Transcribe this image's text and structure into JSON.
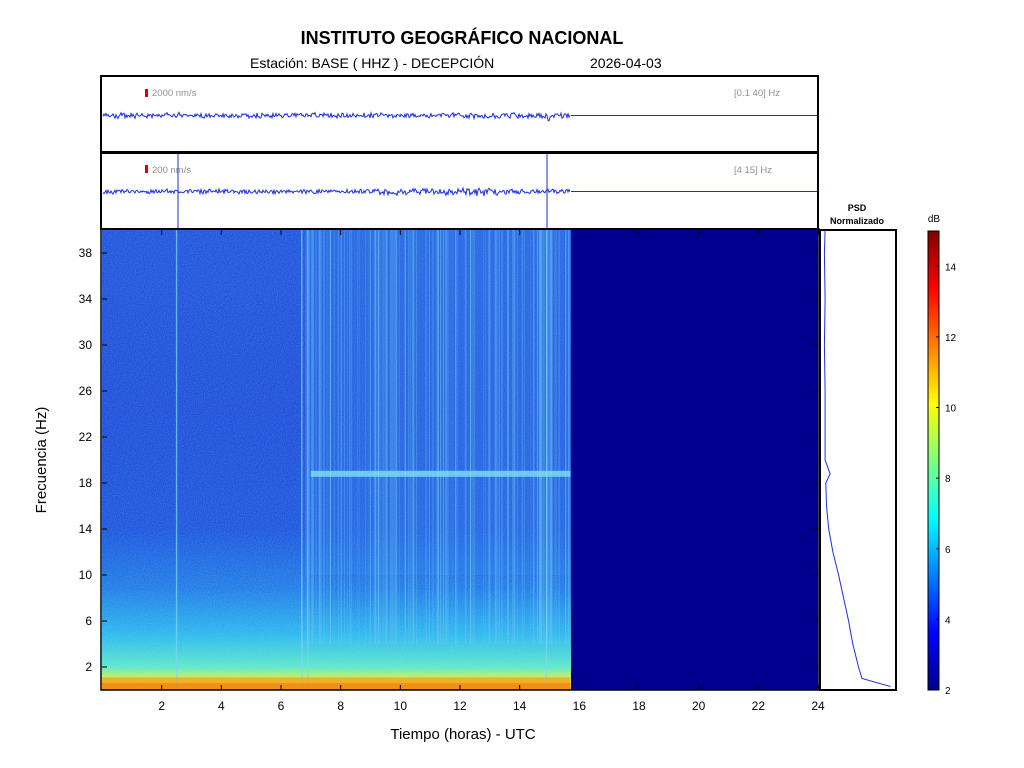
{
  "header": {
    "title": "INSTITUTO GEOGRÁFICO NACIONAL",
    "station": "Estación:  BASE ( HHZ ) - DECEPCIÓN",
    "date": "2026-04-03"
  },
  "traces": [
    {
      "scale_label": "2000 nm/s",
      "band_label": "[0.1 40] Hz",
      "data_end_hour": 15.7
    },
    {
      "scale_label": "200 nm/s",
      "band_label": "[4 15] Hz",
      "data_end_hour": 15.7
    }
  ],
  "psd_panel": {
    "title_line1": "PSD",
    "title_line2": "Normalizado"
  },
  "colorbar": {
    "unit": "dB",
    "ticks": [
      2,
      4,
      6,
      8,
      10,
      12,
      14
    ],
    "range": [
      2,
      15
    ]
  },
  "chart_data": {
    "type": "heatmap",
    "title": "INSTITUTO GEOGRÁFICO NACIONAL",
    "xlabel": "Tiempo (horas) - UTC",
    "ylabel": "Frecuencia  (Hz)",
    "xlim": [
      0,
      24
    ],
    "ylim": [
      0,
      40
    ],
    "xticks": [
      2,
      4,
      6,
      8,
      10,
      12,
      14,
      16,
      18,
      20,
      22,
      24
    ],
    "yticks": [
      2,
      6,
      10,
      14,
      18,
      22,
      26,
      30,
      34,
      38
    ],
    "data_end_hour": 15.7,
    "persistent_band_hz": 18.8,
    "persistent_band_start_hour": 7,
    "psd_profile": {
      "frequency_hz": [
        0.3,
        1,
        2,
        4,
        6,
        8,
        10,
        12,
        14,
        16,
        18,
        18.8,
        20,
        22,
        26,
        30,
        34,
        38,
        40
      ],
      "normalized": [
        0.95,
        0.55,
        0.5,
        0.42,
        0.36,
        0.29,
        0.22,
        0.14,
        0.08,
        0.05,
        0.04,
        0.1,
        0.03,
        0.03,
        0.03,
        0.02,
        0.03,
        0.02,
        0.03
      ]
    }
  }
}
